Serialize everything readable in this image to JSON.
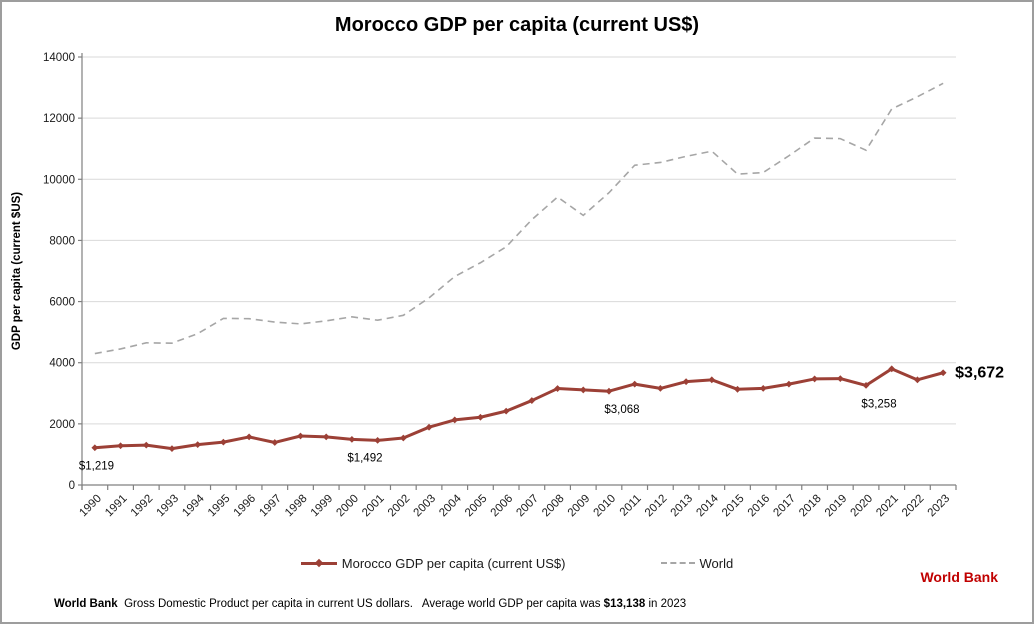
{
  "title": "Morocco GDP per capita (current US$)",
  "chart_data": {
    "type": "line",
    "title": "Morocco GDP per capita (current US$)",
    "x": [
      1990,
      1991,
      1992,
      1993,
      1994,
      1995,
      1996,
      1997,
      1998,
      1999,
      2000,
      2001,
      2002,
      2003,
      2004,
      2005,
      2006,
      2007,
      2008,
      2009,
      2010,
      2011,
      2012,
      2013,
      2014,
      2015,
      2016,
      2017,
      2018,
      2019,
      2020,
      2021,
      2022,
      2023
    ],
    "series": [
      {
        "name": "Morocco GDP per capita (current US$)",
        "color": "#9c4036",
        "line_style": "solid",
        "markers": "diamond",
        "values": [
          1219,
          1283,
          1305,
          1191,
          1320,
          1402,
          1573,
          1391,
          1603,
          1575,
          1492,
          1459,
          1538,
          1891,
          2129,
          2216,
          2417,
          2762,
          3155,
          3110,
          3068,
          3300,
          3160,
          3380,
          3440,
          3130,
          3160,
          3300,
          3470,
          3480,
          3258,
          3800,
          3440,
          3672
        ]
      },
      {
        "name": "World",
        "color": "#a6a6a6",
        "line_style": "dashed",
        "markers": "none",
        "values": [
          4300,
          4450,
          4650,
          4640,
          4950,
          5450,
          5440,
          5330,
          5270,
          5370,
          5500,
          5390,
          5550,
          6120,
          6820,
          7270,
          7790,
          8680,
          9420,
          8820,
          9560,
          10460,
          10550,
          10750,
          10920,
          10170,
          10220,
          10770,
          11350,
          11330,
          10950,
          12300,
          12700,
          13138
        ]
      }
    ],
    "ylabel": "GDP per capita (current $US)",
    "xlabel": "",
    "ylim": [
      0,
      14000
    ],
    "ytick_interval": 2000,
    "grid": "horizontal",
    "legend_position": "bottom",
    "annotations": [
      {
        "year": 1990,
        "text": "$1,219",
        "emphasis": false
      },
      {
        "year": 2000,
        "text": "$1,492",
        "emphasis": false
      },
      {
        "year": 2010,
        "text": "$3,068",
        "emphasis": false
      },
      {
        "year": 2020,
        "text": "$3,258",
        "emphasis": false
      },
      {
        "year": 2023,
        "text": "$3,672",
        "emphasis": true
      }
    ],
    "palette": {
      "grid": "#d9d9d9",
      "axis": "#808080",
      "tick_text": "#1a1a1a"
    }
  },
  "legend": {
    "items": [
      {
        "label": "Morocco GDP per capita (current US$)"
      },
      {
        "label": "World"
      }
    ]
  },
  "watermark": {
    "text": "World Bank",
    "color": "#c00000"
  },
  "footnote": {
    "source": "World Bank",
    "body": "  Gross Domestic Product per capita in current US dollars.   Average world GDP per capita was ",
    "highlight": "$13,138",
    "tail": " in 2023"
  }
}
